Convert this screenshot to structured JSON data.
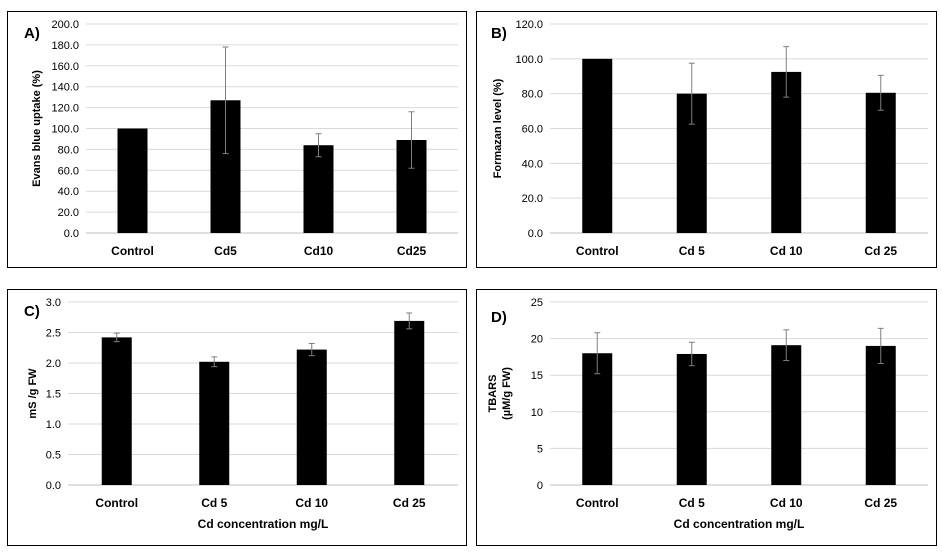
{
  "chart_data": [
    {
      "panel": "A)",
      "type": "bar",
      "ylabel": "Evans blue uptake (%)",
      "xlabel": "",
      "categories": [
        "Control",
        "Cd5",
        "Cd10",
        "Cd25"
      ],
      "values": [
        100,
        127,
        84,
        89
      ],
      "errors": [
        0,
        51,
        11,
        27
      ],
      "ylim": [
        0,
        200
      ],
      "yticks": [
        "0.0",
        "20.0",
        "40.0",
        "60.0",
        "80.0",
        "100.0",
        "120.0",
        "140.0",
        "160.0",
        "180.0",
        "200.0"
      ],
      "grid": true,
      "bar_color": "#000000"
    },
    {
      "panel": "B)",
      "type": "bar",
      "ylabel": "Formazan level (%)",
      "xlabel": "",
      "categories": [
        "Control",
        "Cd 5",
        "Cd 10",
        "Cd 25"
      ],
      "values": [
        100,
        80,
        92.5,
        80.5
      ],
      "errors": [
        0,
        17.5,
        14.5,
        10
      ],
      "ylim": [
        0,
        120
      ],
      "yticks": [
        "0.0",
        "20.0",
        "40.0",
        "60.0",
        "80.0",
        "100.0",
        "120.0"
      ],
      "grid": true,
      "bar_color": "#000000"
    },
    {
      "panel": "C)",
      "type": "bar",
      "ylabel": "mS /g FW",
      "xlabel": "Cd concentration mg/L",
      "categories": [
        "Control",
        "Cd 5",
        "Cd 10",
        "Cd 25"
      ],
      "values": [
        2.42,
        2.02,
        2.22,
        2.69
      ],
      "errors": [
        0.07,
        0.08,
        0.1,
        0.13
      ],
      "ylim": [
        0,
        3
      ],
      "yticks": [
        "0.0",
        "0.5",
        "1.0",
        "1.5",
        "2.0",
        "2.5",
        "3.0"
      ],
      "grid": true,
      "bar_color": "#000000"
    },
    {
      "panel": "D)",
      "type": "bar",
      "ylabel": "TBARS",
      "ylabel2": "(µM/g FW)",
      "xlabel": "Cd concentration mg/L",
      "categories": [
        "Control",
        "Cd 5",
        "Cd 10",
        "Cd 25"
      ],
      "values": [
        18,
        17.9,
        19.1,
        19
      ],
      "errors": [
        2.8,
        1.6,
        2.1,
        2.4
      ],
      "ylim": [
        0,
        25
      ],
      "yticks": [
        "0",
        "5",
        "10",
        "15",
        "20",
        "25"
      ],
      "grid": true,
      "bar_color": "#000000"
    }
  ]
}
